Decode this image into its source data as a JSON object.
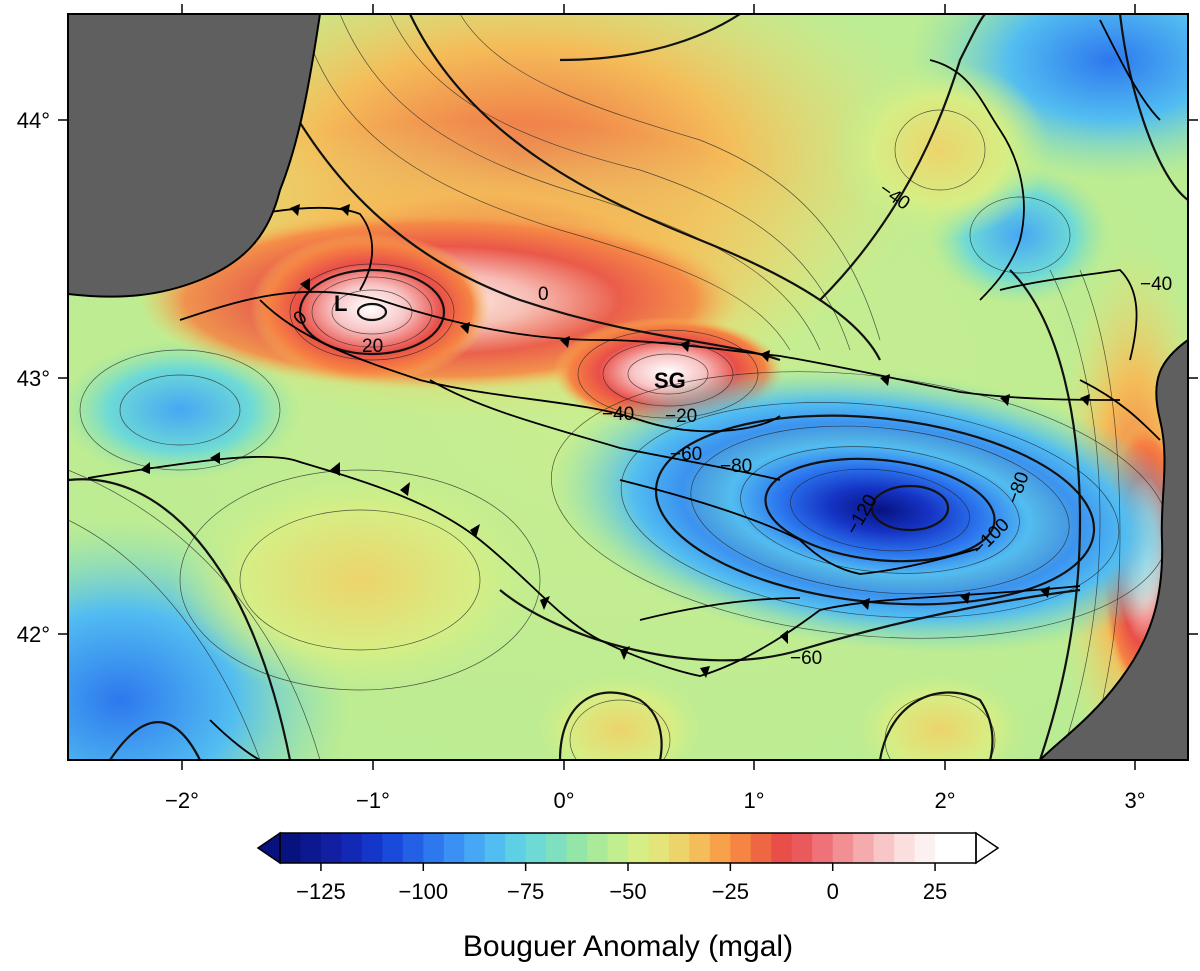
{
  "map": {
    "x_ticks": [
      "−2°",
      "−1°",
      "0°",
      "1°",
      "2°",
      "3°"
    ],
    "y_ticks": [
      "44°",
      "43°",
      "42°"
    ],
    "markers": [
      {
        "id": "L",
        "label": "L"
      },
      {
        "id": "SG",
        "label": "SG"
      }
    ],
    "contour_labels": [
      {
        "id": "c0",
        "text": "0"
      },
      {
        "id": "c0b",
        "text": "0"
      },
      {
        "id": "c20",
        "text": "20"
      },
      {
        "id": "c-40a",
        "text": "−40"
      },
      {
        "id": "c-40b",
        "text": "−40"
      },
      {
        "id": "c-40c",
        "text": "−40"
      },
      {
        "id": "c-20",
        "text": "−20"
      },
      {
        "id": "c-60a",
        "text": "−60"
      },
      {
        "id": "c-80a",
        "text": "−80"
      },
      {
        "id": "c-120",
        "text": "−120"
      },
      {
        "id": "c-100",
        "text": "−100"
      },
      {
        "id": "c-80b",
        "text": "−80"
      },
      {
        "id": "c-60b",
        "text": "−60"
      }
    ],
    "colors": {
      "land_mask": "#5f5f5f",
      "low": "#07127f",
      "mid": "#c8ef8f",
      "high": "#ffffff"
    }
  },
  "colorbar": {
    "title": "Bouguer Anomaly (mgal)",
    "ticks": [
      "−125",
      "−100",
      "−75",
      "−50",
      "−25",
      "0",
      "25"
    ],
    "tick_values": [
      -125,
      -100,
      -75,
      -50,
      -25,
      0,
      25
    ],
    "range": [
      -135,
      35
    ],
    "step": 5,
    "colors": [
      "#07127f",
      "#0c188f",
      "#111fa0",
      "#1428b6",
      "#1537c9",
      "#1a4adc",
      "#2360e6",
      "#2d78ee",
      "#3a90f3",
      "#46a7f4",
      "#52bdf1",
      "#5ed0e6",
      "#6edad6",
      "#7fe0bf",
      "#94e6a8",
      "#aaea98",
      "#c1ee8f",
      "#d6ee85",
      "#e3e57a",
      "#ecd46a",
      "#f4bd59",
      "#f8a14b",
      "#f68443",
      "#ef6642",
      "#e94f48",
      "#ea5a5c",
      "#ee7277",
      "#f28f92",
      "#f5abad",
      "#f8c6c7",
      "#fbdfdf",
      "#fdf0f0",
      "#ffffff",
      "#ffffff"
    ]
  }
}
